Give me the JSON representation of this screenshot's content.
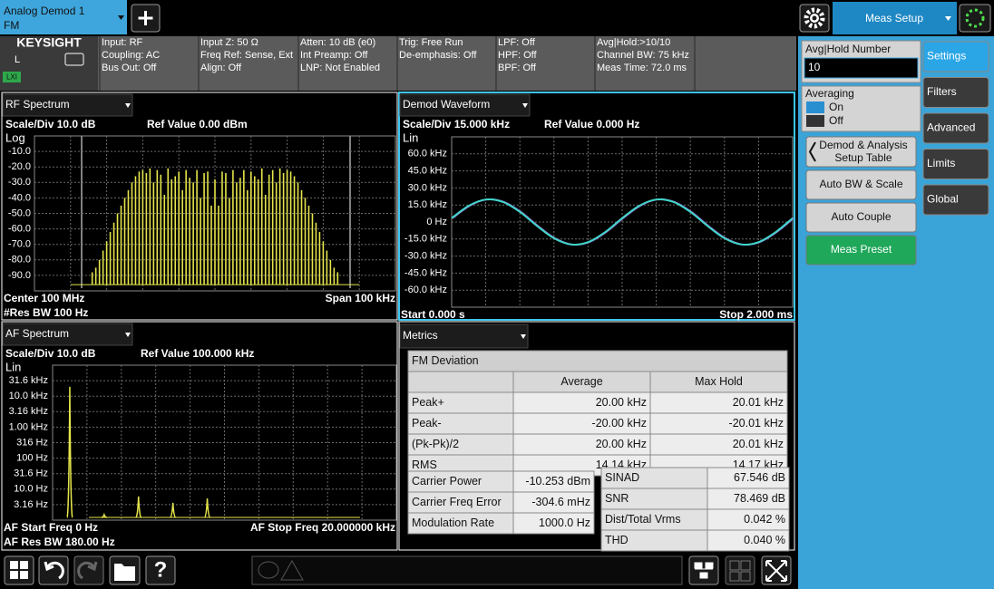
{
  "top_bar": {
    "tab_title": "Analog Demod 1",
    "tab_mode": "FM",
    "meas_setup": "Meas Setup"
  },
  "info_bar": {
    "logo": "KEYSIGHT",
    "channel": "L",
    "lxi": "LXI",
    "columns": [
      [
        "Input: RF",
        "Coupling: AC",
        "Bus Out: Off"
      ],
      [
        "Input Z: 50 Ω",
        "Freq Ref: Sense, Ext",
        "Align: Off"
      ],
      [
        "Atten: 10 dB (e0)",
        "Int Preamp: Off",
        "LNP: Not Enabled"
      ],
      [
        "Trig: Free Run",
        "De-emphasis: Off"
      ],
      [
        "LPF: Off",
        "HPF: Off",
        "BPF: Off"
      ],
      [
        "Avg|Hold:>10/10",
        "Channel BW: 75 kHz",
        "Meas Time: 72.0 ms"
      ]
    ]
  },
  "chart_data": [
    {
      "type": "bar",
      "title": "RF Spectrum",
      "scale": "Scale/Div 10.0 dB",
      "ref_value": "Ref Value 0.00 dBm",
      "scale_type": "Log",
      "x_start": "Center 100 MHz",
      "res_bw": "#Res BW 100 Hz",
      "x_stop": "Span 100 kHz",
      "color": "#e6e64c",
      "xlim": [
        -50,
        50
      ],
      "ylim": [
        -100,
        0
      ],
      "yticks": [
        {
          "value": -10,
          "label": "-10.0"
        },
        {
          "value": -20,
          "label": "-20.0"
        },
        {
          "value": -30,
          "label": "-30.0"
        },
        {
          "value": -40,
          "label": "-40.0"
        },
        {
          "value": -50,
          "label": "-50.0"
        },
        {
          "value": -60,
          "label": "-60.0"
        },
        {
          "value": -70,
          "label": "-70.0"
        },
        {
          "value": -80,
          "label": "-80.0"
        },
        {
          "value": -90,
          "label": "-90.0"
        }
      ],
      "x": [
        -34,
        -33,
        -32,
        -31,
        -30,
        -29,
        -28,
        -27,
        -26,
        -25,
        -24,
        -23,
        -22,
        -21,
        -20,
        -19,
        -18,
        -17,
        -16,
        -15,
        -14,
        -13,
        -12,
        -11,
        -10,
        -9,
        -8,
        -7,
        -6,
        -5,
        -4,
        -3,
        -2,
        -1,
        0,
        1,
        2,
        3,
        4,
        5,
        6,
        7,
        8,
        9,
        10,
        11,
        12,
        13,
        14,
        15,
        16,
        17,
        18,
        19,
        20,
        21,
        22,
        23,
        24,
        25,
        26,
        27,
        28,
        29,
        30,
        31,
        32,
        33,
        34
      ],
      "values": [
        -88,
        -85,
        -80,
        -74,
        -68,
        -62,
        -56,
        -50,
        -45,
        -40,
        -35,
        -30,
        -26,
        -23,
        -22,
        -24,
        -21,
        -30,
        -22,
        -25,
        -38,
        -21,
        -28,
        -26,
        -23,
        -35,
        -22,
        -27,
        -30,
        -22,
        -40,
        -24,
        -23,
        -45,
        -28,
        -45,
        -23,
        -24,
        -40,
        -22,
        -30,
        -27,
        -22,
        -35,
        -23,
        -26,
        -28,
        -21,
        -38,
        -25,
        -22,
        -30,
        -21,
        -24,
        -22,
        -23,
        -26,
        -30,
        -35,
        -40,
        -45,
        -50,
        -56,
        -62,
        -68,
        -74,
        -80,
        -85,
        -88
      ]
    },
    {
      "type": "line",
      "title": "Demod Waveform",
      "scale": "Scale/Div 15.000 kHz",
      "ref_value": "Ref Value 0.000 Hz",
      "scale_type": "Lin",
      "x_start": "Start 0.000 s",
      "x_stop": "Stop 2.000 ms",
      "color": "#3ed6c8",
      "xlim": [
        0,
        2
      ],
      "ylim": [
        -75,
        75
      ],
      "yticks": [
        {
          "value": 60,
          "label": "60.0 kHz"
        },
        {
          "value": 45,
          "label": "45.0 kHz"
        },
        {
          "value": 30,
          "label": "30.0 kHz"
        },
        {
          "value": 15,
          "label": "15.0 kHz"
        },
        {
          "value": 0,
          "label": "0 Hz"
        },
        {
          "value": -15,
          "label": "-15.0 kHz"
        },
        {
          "value": -30,
          "label": "-30.0 kHz"
        },
        {
          "value": -45,
          "label": "-45.0 kHz"
        },
        {
          "value": -60,
          "label": "-60.0 kHz"
        }
      ],
      "x": [
        0,
        0.1,
        0.2,
        0.3,
        0.4,
        0.5,
        0.6,
        0.7,
        0.8,
        0.9,
        1.0,
        1.1,
        1.2,
        1.3,
        1.4,
        1.5,
        1.6,
        1.7,
        1.8,
        1.9,
        2.0
      ],
      "values": [
        3.4,
        14.3,
        19.8,
        17.7,
        8.9,
        -3.4,
        -14.3,
        -19.8,
        -17.7,
        -8.9,
        3.4,
        14.3,
        19.8,
        17.7,
        8.9,
        -3.4,
        -14.3,
        -19.8,
        -17.7,
        -8.9,
        3.4
      ]
    },
    {
      "type": "bar",
      "title": "AF Spectrum",
      "scale": "Scale/Div 10.0 dB",
      "ref_value": "Ref Value 100.000 kHz",
      "scale_type": "Lin",
      "x_start": "AF Start Freq 0 Hz",
      "res_bw": "AF Res BW 180.00 Hz",
      "x_stop": "AF Stop Freq 20.000000 kHz",
      "color": "#e6e64c",
      "log_scale": true,
      "xlim": [
        0,
        20
      ],
      "ylim": [
        1,
        100000
      ],
      "yticks": [
        {
          "value": 31600,
          "label": "31.6 kHz"
        },
        {
          "value": 10000,
          "label": "10.0 kHz"
        },
        {
          "value": 3160,
          "label": "3.16 kHz"
        },
        {
          "value": 1000,
          "label": "1.00 kHz"
        },
        {
          "value": 316,
          "label": "316 Hz"
        },
        {
          "value": 100,
          "label": "100 Hz"
        },
        {
          "value": 31.6,
          "label": "31.6 Hz"
        },
        {
          "value": 10,
          "label": "10.0 Hz"
        },
        {
          "value": 3.16,
          "label": "3.16 Hz"
        }
      ],
      "x": [
        1,
        3,
        5,
        7,
        9
      ],
      "values": [
        20000,
        1.5,
        5.8,
        3.6,
        5
      ]
    }
  ],
  "metrics": {
    "title": "Metrics",
    "fm_deviation": {
      "title": "FM Deviation",
      "headers": [
        "Average",
        "Max Hold"
      ],
      "rows": [
        [
          "Peak+",
          "20.00 kHz",
          "20.01 kHz"
        ],
        [
          "Peak-",
          "-20.00 kHz",
          "-20.01 kHz"
        ],
        [
          "(Pk-Pk)/2",
          "20.00 kHz",
          "20.01 kHz"
        ],
        [
          "RMS",
          "14.14 kHz",
          "14.17 kHz"
        ]
      ]
    },
    "carrier": [
      [
        "Carrier Power",
        "-10.253 dBm"
      ],
      [
        "Carrier Freq Error",
        "-304.6 mHz"
      ],
      [
        "Modulation Rate",
        "1000.0 Hz"
      ]
    ],
    "distortion": [
      [
        "SINAD",
        "67.546 dB"
      ],
      [
        "SNR",
        "78.469 dB"
      ],
      [
        "Dist/Total Vrms",
        "0.042 %"
      ],
      [
        "THD",
        "0.040 %"
      ]
    ]
  },
  "side_panel": {
    "avg_hold_label": "Avg|Hold Number",
    "avg_hold_value": "10",
    "averaging_label": "Averaging",
    "on": "On",
    "off": "Off",
    "buttons": [
      "Demod & Analysis",
      "Setup Table",
      "Auto BW & Scale",
      "Auto Couple",
      "Meas Preset"
    ],
    "tabs": [
      "Settings",
      "Filters",
      "Advanced",
      "Limits",
      "Global"
    ]
  },
  "taskbar": {
    "help": "?"
  }
}
